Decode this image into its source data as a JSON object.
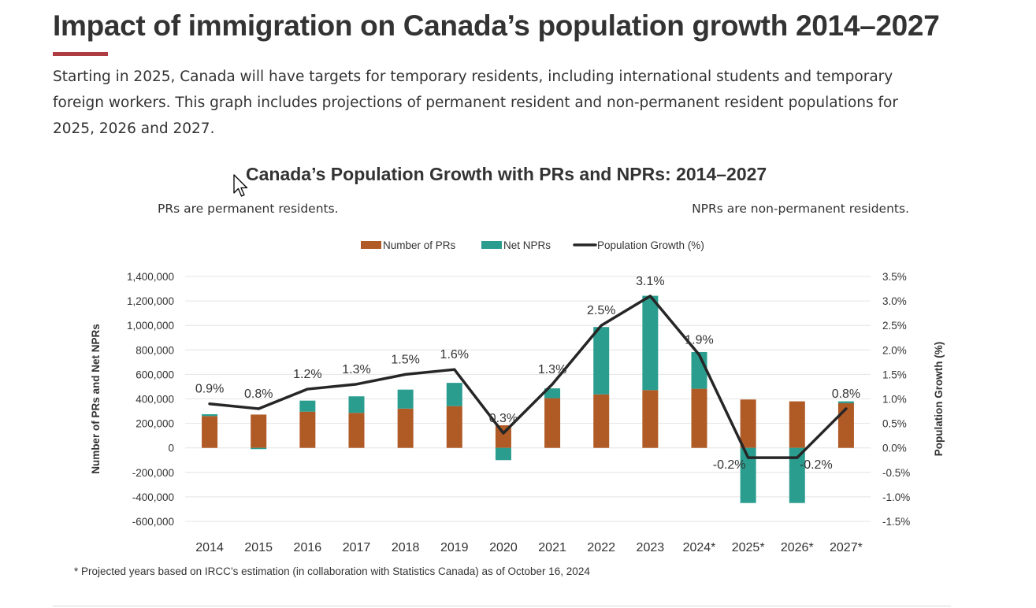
{
  "page": {
    "title": "Impact of immigration on Canada’s population growth 2014–2027",
    "intro": "Starting in 2025, Canada will have targets for temporary residents, including international students and temporary foreign workers. This graph includes projections of permanent resident and non-permanent resident populations for 2025, 2026 and 2027."
  },
  "chart_header": {
    "title": "Canada’s Population Growth with PRs and NPRs: 2014–2027",
    "note_left": "PRs are permanent residents.",
    "note_right": "NPRs are non-permanent residents."
  },
  "colors": {
    "prs": "#b05a26",
    "nprs": "#2a9d8f",
    "growth": "#262626",
    "title_rule": "#af3c43",
    "grid": "#e4e4e4"
  },
  "chart_data": {
    "type": "bar",
    "stacked": true,
    "combo_line": true,
    "categories": [
      "2014",
      "2015",
      "2016",
      "2017",
      "2018",
      "2019",
      "2020",
      "2021",
      "2022",
      "2023",
      "2024*",
      "2025*",
      "2026*",
      "2027*"
    ],
    "series": [
      {
        "name": "Number of PRs",
        "type": "bar",
        "axis": "left",
        "color": "#b05a26",
        "values": [
          260000,
          272000,
          296000,
          286000,
          321000,
          341000,
          185000,
          406000,
          437000,
          472000,
          483000,
          395000,
          380000,
          365000
        ]
      },
      {
        "name": "Net NPRs",
        "type": "bar",
        "axis": "left",
        "color": "#2a9d8f",
        "values": [
          15000,
          -10000,
          90000,
          135000,
          155000,
          190000,
          -100000,
          80000,
          550000,
          770000,
          300000,
          -450000,
          -450000,
          15000
        ]
      },
      {
        "name": "Population Growth (%)",
        "type": "line",
        "axis": "right",
        "color": "#262626",
        "values": [
          0.9,
          0.8,
          1.2,
          1.3,
          1.5,
          1.6,
          0.3,
          1.3,
          2.5,
          3.1,
          1.9,
          -0.2,
          -0.2,
          0.8
        ],
        "labels": [
          "0.9%",
          "0.8%",
          "1.2%",
          "1.3%",
          "1.5%",
          "1.6%",
          "0.3%",
          "1.3%",
          "2.5%",
          "3.1%",
          "1.9%",
          "-0.2%",
          "-0.2%",
          "0.8%"
        ]
      }
    ],
    "ylabel": "Number of PRs and Net NPRs",
    "ylim": [
      -600000,
      1400000
    ],
    "yticks": [
      -600000,
      -400000,
      -200000,
      0,
      200000,
      400000,
      600000,
      800000,
      1000000,
      1200000,
      1400000
    ],
    "ytick_labels": [
      "-600,000",
      "-400,000",
      "-200,000",
      "0",
      "200,000",
      "400,000",
      "600,000",
      "800,000",
      "1,000,000",
      "1,200,000",
      "1,400,000"
    ],
    "y2label": "Population Growth (%)",
    "y2lim": [
      -1.5,
      3.5
    ],
    "y2ticks": [
      -1.5,
      -1.0,
      -0.5,
      0.0,
      0.5,
      1.0,
      1.5,
      2.0,
      2.5,
      3.0,
      3.5
    ],
    "y2tick_labels": [
      "-1.5%",
      "-1.0%",
      "-0.5%",
      "0.0%",
      "0.5%",
      "1.0%",
      "1.5%",
      "2.0%",
      "2.5%",
      "3.0%",
      "3.5%"
    ],
    "grid": true,
    "legend_position": "top",
    "footnote": "* Projected years based on IRCC’s estimation (in collaboration with Statistics Canada) as of October 16, 2024"
  }
}
